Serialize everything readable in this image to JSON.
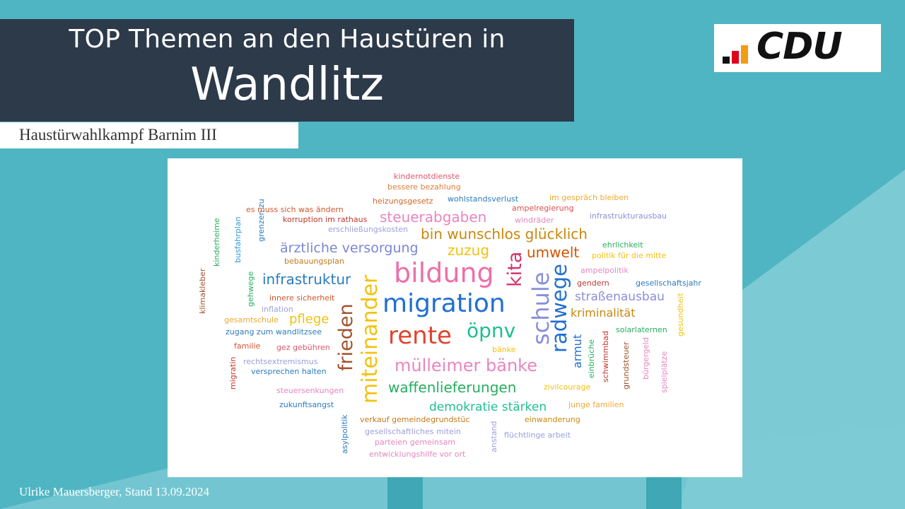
{
  "slide": {
    "title_line1": "TOP Themen an den Haustüren in",
    "title_line2": "Wandlitz",
    "subtitle": "Haustürwahlkampf Barnim III",
    "footer": "Ulrike Mauersberger, Stand 13.09.2024",
    "logo_text": "CDU",
    "colors": {
      "background": "#4fb5c2",
      "title_bg": "#2c3a4a",
      "logo_bars": [
        "#111111",
        "#e2001a",
        "#f39c12"
      ]
    }
  },
  "cloud": {
    "words": [
      {
        "id": "kindernotdienste",
        "text": "kindernotdienste",
        "color": "#e0566b"
      },
      {
        "id": "bessere-bezahlung",
        "text": "bessere bezahlung",
        "color": "#e07d3a"
      },
      {
        "id": "heizungsgesetz",
        "text": "heizungsgesetz",
        "color": "#cc6a2f"
      },
      {
        "id": "wohlstandsverlust",
        "text": "wohlstandsverlust",
        "color": "#2a7bbf"
      },
      {
        "id": "im-gespraech-bleiben",
        "text": "im gespräch bleiben",
        "color": "#f0a830"
      },
      {
        "id": "es-muss-sich-was-aendern",
        "text": "es muss sich was ändern",
        "color": "#d4572c"
      },
      {
        "id": "ampelregierung",
        "text": "ampelregierung",
        "color": "#e04b4b"
      },
      {
        "id": "infrastrukturausbau",
        "text": "infrastrukturausbau",
        "color": "#8a8fd8"
      },
      {
        "id": "korruption-im-rathaus",
        "text": "korruption im rathaus",
        "color": "#c0392b"
      },
      {
        "id": "steuerabgaben",
        "text": "steuerabgaben",
        "color": "#e786c0"
      },
      {
        "id": "windraeder",
        "text": "windräder",
        "color": "#e786c0"
      },
      {
        "id": "erschliessungskosten",
        "text": "erschließungskosten",
        "color": "#9aa0dc"
      },
      {
        "id": "bin-wunschlos-gluecklich",
        "text": "bin wunschlos glücklich",
        "color": "#c8880c"
      },
      {
        "id": "ehrlichkeit",
        "text": "ehrlichkeit",
        "color": "#27ae60"
      },
      {
        "id": "aerztliche-versorgung",
        "text": "ärztliche versorgung",
        "color": "#7b86d6"
      },
      {
        "id": "zuzug",
        "text": "zuzug",
        "color": "#f2c20f"
      },
      {
        "id": "umwelt",
        "text": "umwelt",
        "color": "#d35400"
      },
      {
        "id": "politik-fuer-die-mitte",
        "text": "politik für die mitte",
        "color": "#f2c20f"
      },
      {
        "id": "bebauungsplan",
        "text": "bebauungsplan",
        "color": "#c27a1a"
      },
      {
        "id": "kinderheime",
        "text": "kinderheime",
        "color": "#27ae60"
      },
      {
        "id": "busfahrplan",
        "text": "busfahrplan",
        "color": "#3498db"
      },
      {
        "id": "grenzen-zu",
        "text": "grenzen zu",
        "color": "#2a7bbf"
      },
      {
        "id": "klimakleber",
        "text": "klimakleber",
        "color": "#a0522d"
      },
      {
        "id": "bildung",
        "text": "bildung",
        "color": "#ee6fa8"
      },
      {
        "id": "kita",
        "text": "kita",
        "color": "#d6336c"
      },
      {
        "id": "ampelpolitik",
        "text": "ampelpolitik",
        "color": "#e786c0"
      },
      {
        "id": "infrastruktur",
        "text": "infrastruktur",
        "color": "#2a7bbf"
      },
      {
        "id": "gendern",
        "text": "gendern",
        "color": "#c0392b"
      },
      {
        "id": "gesellschaftsjahr",
        "text": "gesellschaftsjahr",
        "color": "#2a7bbf"
      },
      {
        "id": "gehwege",
        "text": "gehwege",
        "color": "#27ae60"
      },
      {
        "id": "innere-sicherheit",
        "text": "innere sicherheit",
        "color": "#d4572c"
      },
      {
        "id": "migration",
        "text": "migration",
        "color": "#1f6fd1"
      },
      {
        "id": "strassenausbau",
        "text": "straßenausbau",
        "color": "#8a8fd8"
      },
      {
        "id": "gesundheit",
        "text": "gesundheit",
        "color": "#f2c20f"
      },
      {
        "id": "inflation",
        "text": "inflation",
        "color": "#9aa0dc"
      },
      {
        "id": "kriminalitaet",
        "text": "kriminalität",
        "color": "#c8880c"
      },
      {
        "id": "gesamtschule",
        "text": "gesamtschule",
        "color": "#f0a830"
      },
      {
        "id": "pflege",
        "text": "pflege",
        "color": "#f2c20f"
      },
      {
        "id": "frieden",
        "text": "frieden",
        "color": "#a0522d"
      },
      {
        "id": "miteinander",
        "text": "miteinander",
        "color": "#f2c20f"
      },
      {
        "id": "rente",
        "text": "rente",
        "color": "#e0442e"
      },
      {
        "id": "oepnv",
        "text": "öpnv",
        "color": "#1fbf8f"
      },
      {
        "id": "schule",
        "text": "schule",
        "color": "#8a8fd8"
      },
      {
        "id": "radwege",
        "text": "radwege",
        "color": "#1f6fd1"
      },
      {
        "id": "zugang-zum-wandlitzsee",
        "text": "zugang zum wandlitzsee",
        "color": "#2a7bbf"
      },
      {
        "id": "solarlaternen",
        "text": "solarlaternen",
        "color": "#27ae60"
      },
      {
        "id": "familie",
        "text": "familie",
        "color": "#d4572c"
      },
      {
        "id": "gez-gebuehren",
        "text": "gez gebühren",
        "color": "#e0566b"
      },
      {
        "id": "baenke",
        "text": "bänke",
        "color": "#f2c20f"
      },
      {
        "id": "armut",
        "text": "armut",
        "color": "#1f6fd1"
      },
      {
        "id": "einbrueche",
        "text": "einbrüche",
        "color": "#27ae60"
      },
      {
        "id": "schwimmbad",
        "text": "schwimmbad",
        "color": "#c0392b"
      },
      {
        "id": "grundsteuer",
        "text": "grundsteuer",
        "color": "#a0522d"
      },
      {
        "id": "buergergeld",
        "text": "bürgergeld",
        "color": "#e786c0"
      },
      {
        "id": "spielplaetze",
        "text": "spielplätze",
        "color": "#e786c0"
      },
      {
        "id": "rechtsextremismus",
        "text": "rechtsextremismus",
        "color": "#9aa0dc"
      },
      {
        "id": "muelleimer-baenke",
        "text": "mülleimer bänke",
        "color": "#e786c0"
      },
      {
        "id": "migratin",
        "text": "migratin",
        "color": "#c0392b"
      },
      {
        "id": "versprechen-halten",
        "text": "versprechen halten",
        "color": "#2a7bbf"
      },
      {
        "id": "waffenlieferungen",
        "text": "waffenlieferungen",
        "color": "#27ae60"
      },
      {
        "id": "zivilcourage",
        "text": "zivilcourage",
        "color": "#f2c20f"
      },
      {
        "id": "steuersenkungen",
        "text": "steuersenkungen",
        "color": "#e786c0"
      },
      {
        "id": "junge-familien",
        "text": "junge familien",
        "color": "#f0a830"
      },
      {
        "id": "zukunftsangst",
        "text": "zukunftsangst",
        "color": "#2a7bbf"
      },
      {
        "id": "demokratie-staerken",
        "text": "demokratie stärken",
        "color": "#1fbf8f"
      },
      {
        "id": "verkauf-gemeindegrundstuec",
        "text": "verkauf gemeindegrundstüc",
        "color": "#c27a1a"
      },
      {
        "id": "einwanderung",
        "text": "einwanderung",
        "color": "#c8880c"
      },
      {
        "id": "asylpolitik",
        "text": "asylpolitik",
        "color": "#2a7bbf"
      },
      {
        "id": "gesellschaftliches-mitein",
        "text": "gesellschaftliches mitein",
        "color": "#9aa0dc"
      },
      {
        "id": "anstand",
        "text": "anstand",
        "color": "#9aa0dc"
      },
      {
        "id": "fluechtlinge-arbeit",
        "text": "flüchtlinge arbeit",
        "color": "#9aa0dc"
      },
      {
        "id": "parteien-gemeinsam",
        "text": "parteien gemeinsam",
        "color": "#e786c0"
      },
      {
        "id": "entwicklungshilfe-vor-ort",
        "text": "entwicklungshilfe vor ort",
        "color": "#e786c0"
      }
    ]
  }
}
